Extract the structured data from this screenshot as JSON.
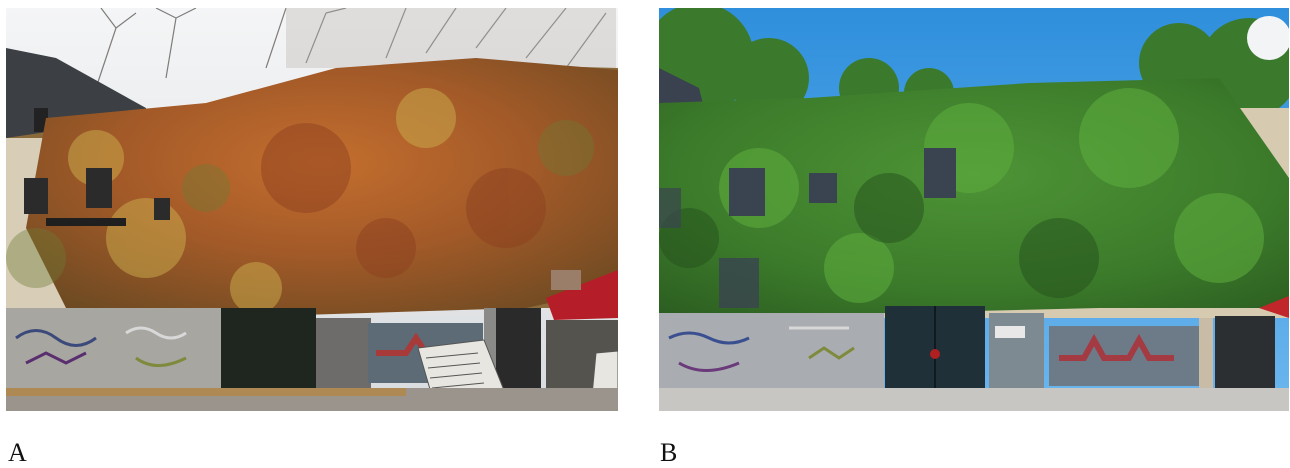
{
  "panels": [
    {
      "label": "A",
      "scene": "autumn-ivy-covered-building",
      "foliage_color": "#b5652a"
    },
    {
      "label": "B",
      "scene": "summer-ivy-covered-building",
      "foliage_color": "#3f7d2a"
    }
  ],
  "colors": {
    "autumn_sky": "#e9ecef",
    "summer_sky": "#3d9be0",
    "background": "#ffffff"
  }
}
